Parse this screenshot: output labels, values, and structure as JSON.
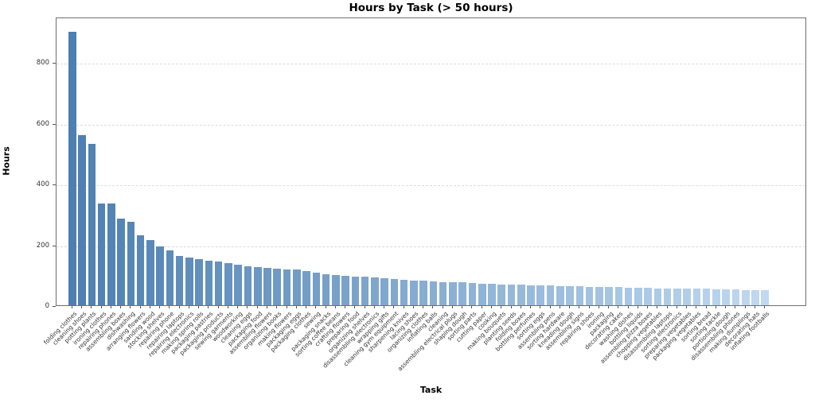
{
  "chart_data": {
    "type": "bar",
    "title": "Hours by Task (> 50 hours)",
    "xlabel": "Task",
    "ylabel": "Hours",
    "ylim": [
      0,
      950
    ],
    "yticks": [
      0,
      200,
      400,
      600,
      800
    ],
    "grid": "horizontal-dashed",
    "legend": "none",
    "bar_color_start": "#4d7fb2",
    "bar_color_end": "#bfd9f0",
    "categories": [
      "folding clothes",
      "cleaning shoes",
      "potting plants",
      "ironing clothes",
      "repairing phones",
      "assembling boxes",
      "dishwashing",
      "arranging flowers",
      "sanding wood",
      "stocking shelves",
      "repairing phone",
      "repairing laptops",
      "repairing electronics",
      "making spring rolls",
      "packaging pastries",
      "packaging products",
      "sewing garments",
      "woodworking",
      "cleaning eggs",
      "packaging food",
      "assembling flowers",
      "organizing books",
      "making flowers",
      "packaging eggs",
      "packaging clothes",
      "sewing",
      "packaging snacks",
      "sorting coffee beans",
      "crafting flowers",
      "preparing food",
      "organizing shelves",
      "disassembling electronics",
      "wrapping gifts",
      "cleaning gym equipment",
      "sharpening knives",
      "lacing shoes",
      "organizing clothes",
      "inflating balls",
      "cleaning",
      "assembling electrical plugs",
      "shaping dough",
      "sorting parts",
      "cutting paper",
      "cooking",
      "making bouquets",
      "planting seeds",
      "folding boxes",
      "bottling perfumes",
      "sorting eggs",
      "assembling pens",
      "sorting hardware",
      "kneading dough",
      "assembling signs",
      "repairing shoes",
      "ironing",
      "packaging",
      "decorating cakes",
      "washing dishes",
      "bottling liquids",
      "assembling pizza boxes",
      "chopping vegetables",
      "disassembling laptops",
      "sorting electronics",
      "preparing vegetables",
      "packaging vegetables",
      "sorting bread",
      "sorting tackle",
      "portioning dough",
      "disassembling phones",
      "making dumplings",
      "decorating hats",
      "inflating footballs"
    ],
    "values": [
      900,
      560,
      530,
      335,
      335,
      285,
      275,
      230,
      215,
      195,
      180,
      163,
      158,
      152,
      147,
      143,
      138,
      133,
      128,
      126,
      124,
      121,
      119,
      117,
      112,
      107,
      102,
      99,
      97,
      95,
      93,
      91,
      89,
      87,
      85,
      82,
      80,
      78,
      77,
      76,
      75,
      73,
      72,
      70,
      69,
      68,
      67,
      66,
      66,
      65,
      64,
      63,
      62,
      61,
      61,
      60,
      59,
      58,
      58,
      57,
      56,
      56,
      55,
      55,
      54,
      54,
      53,
      52,
      52,
      51,
      51,
      50
    ]
  }
}
